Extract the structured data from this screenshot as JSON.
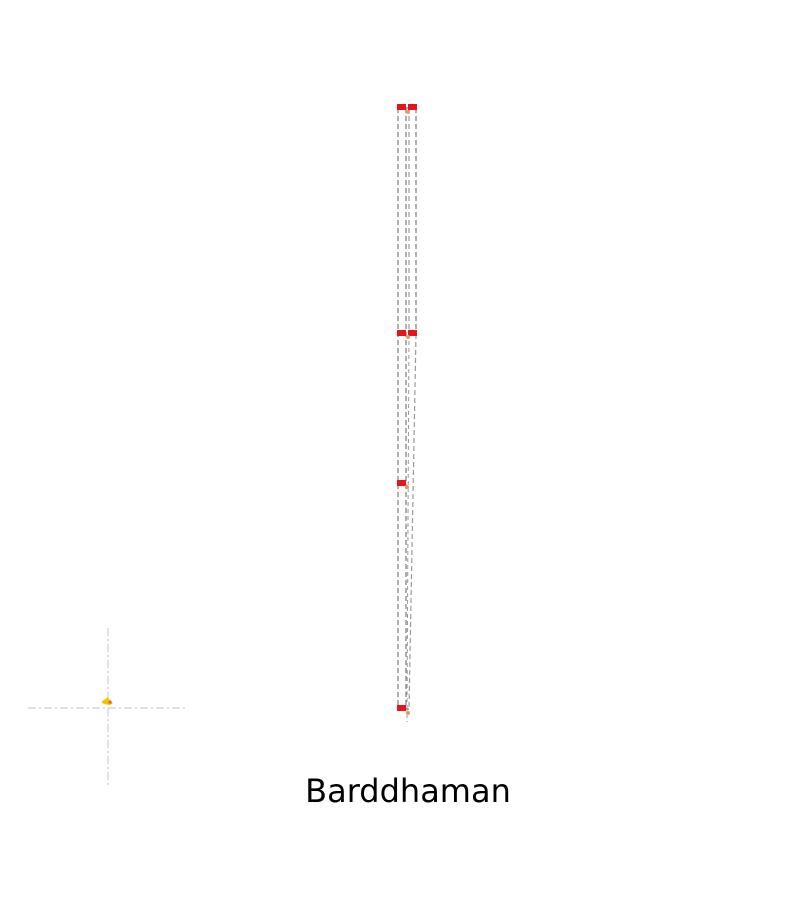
{
  "station": {
    "name": "Barddhaman"
  },
  "colors": {
    "signal": "#e8141b",
    "track_dashed": "#7a7a7a",
    "track_light": "#9a9a9a",
    "crosshair": "#cfcfcf",
    "marker": "#f5c400",
    "marker_accent": "#e06a00",
    "junction": "#d9a066"
  }
}
